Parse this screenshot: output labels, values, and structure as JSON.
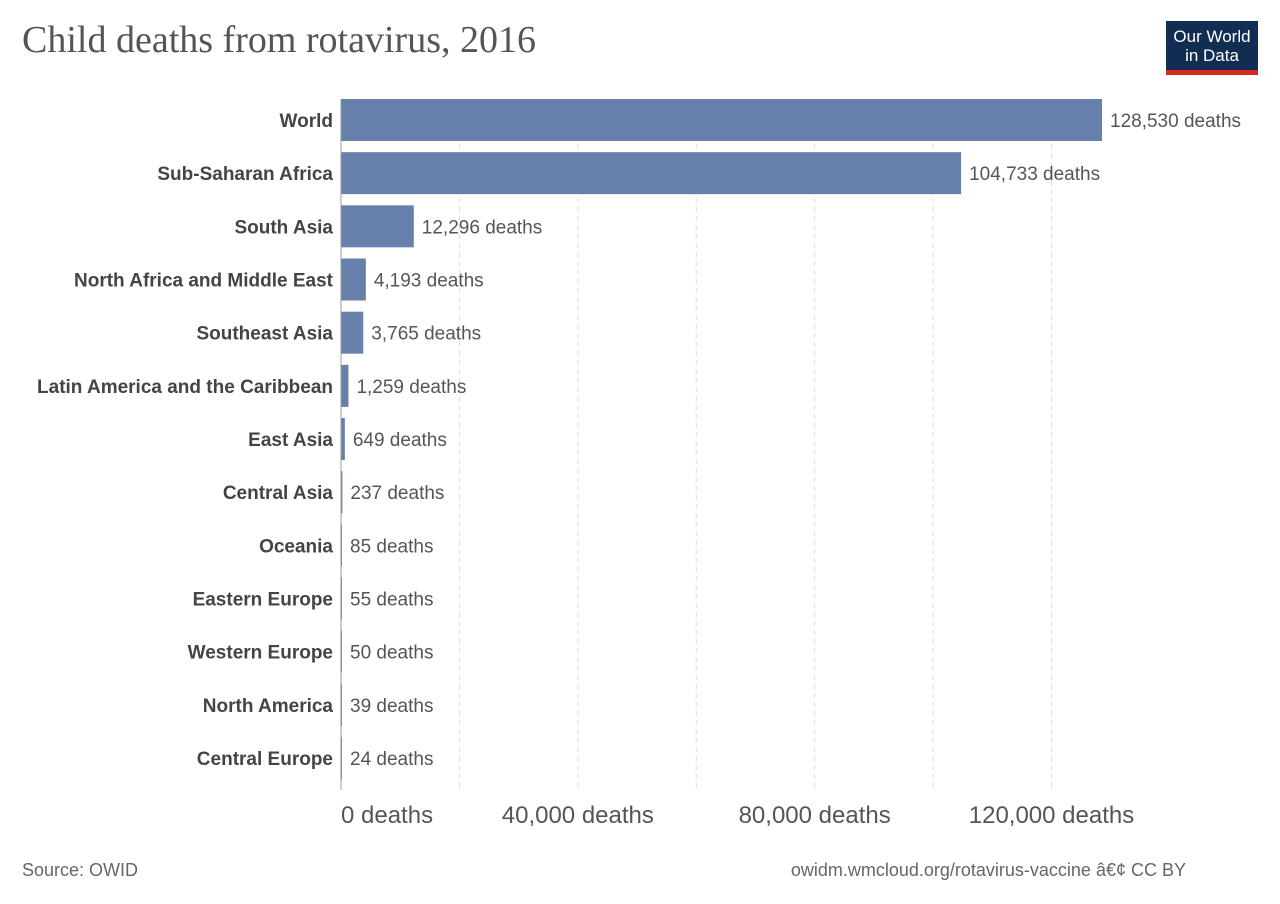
{
  "logo": {
    "line1": "Our World",
    "line2": "in Data"
  },
  "footer": {
    "source": "Source: OWID",
    "license": "owidm.wmcloud.org/rotavirus-vaccine â€¢ CC BY"
  },
  "colors": {
    "bar": "#6680ab",
    "grid": "#dddddd",
    "axis": "#999999"
  },
  "chart_data": {
    "type": "bar",
    "orientation": "horizontal",
    "title": "Child deaths from rotavirus, 2016",
    "categories": [
      "World",
      "Sub-Saharan Africa",
      "South Asia",
      "North Africa and Middle East",
      "Southeast Asia",
      "Latin America and the Caribbean",
      "East Asia",
      "Central Asia",
      "Oceania",
      "Eastern Europe",
      "Western Europe",
      "North America",
      "Central Europe"
    ],
    "values": [
      128530,
      104733,
      12296,
      4193,
      3765,
      1259,
      649,
      237,
      85,
      55,
      50,
      39,
      24
    ],
    "value_labels": [
      "128,530 deaths",
      "104,733 deaths",
      "12,296 deaths",
      "4,193 deaths",
      "3,765 deaths",
      "1,259 deaths",
      "649 deaths",
      "237 deaths",
      "85 deaths",
      "55 deaths",
      "50 deaths",
      "39 deaths",
      "24 deaths"
    ],
    "xlim": [
      0,
      128530
    ],
    "xticks": [
      0,
      40000,
      80000,
      120000
    ],
    "xtick_labels": [
      "0 deaths",
      "40,000 deaths",
      "80,000 deaths",
      "120,000 deaths"
    ],
    "grid_values": [
      20000,
      40000,
      60000,
      80000,
      100000,
      120000
    ],
    "grid": true,
    "legend": "none"
  }
}
